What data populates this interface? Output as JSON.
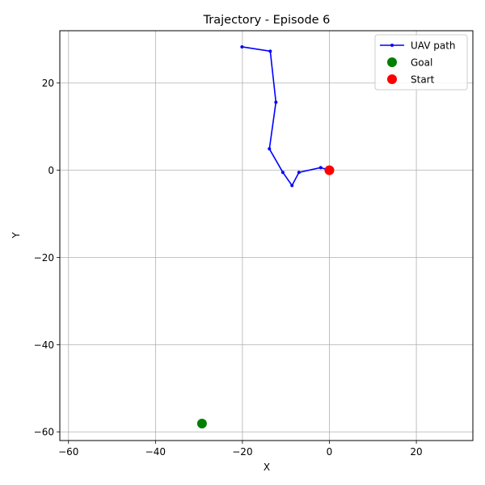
{
  "chart_data": {
    "type": "line",
    "title": "Trajectory - Episode 6",
    "xlabel": "X",
    "ylabel": "Y",
    "xlim": [
      -62,
      33
    ],
    "ylim": [
      -62,
      32
    ],
    "xticks": [
      -60,
      -40,
      -20,
      0,
      20
    ],
    "yticks": [
      -60,
      -40,
      -20,
      0,
      20
    ],
    "xtick_labels": [
      "−60",
      "−40",
      "−20",
      "0",
      "20"
    ],
    "ytick_labels": [
      "−60",
      "−40",
      "−20",
      "0",
      "20"
    ],
    "grid": true,
    "legend_position": "top-right",
    "series": [
      {
        "name": "UAV path",
        "kind": "line",
        "color": "#0000ff",
        "points": [
          [
            0,
            0
          ],
          [
            -2,
            0.6
          ],
          [
            -7,
            -0.5
          ],
          [
            -8.6,
            -3.5
          ],
          [
            -10.7,
            -0.5
          ],
          [
            -13.8,
            4.9
          ],
          [
            -12.3,
            15.6
          ],
          [
            -13.6,
            27.3
          ],
          [
            -20.1,
            28.3
          ]
        ]
      },
      {
        "name": "Goal",
        "kind": "marker",
        "color": "#008000",
        "points": [
          [
            -29.3,
            -58.1
          ]
        ]
      },
      {
        "name": "Start",
        "kind": "marker",
        "color": "#ff0000",
        "points": [
          [
            0,
            0
          ]
        ]
      }
    ]
  }
}
